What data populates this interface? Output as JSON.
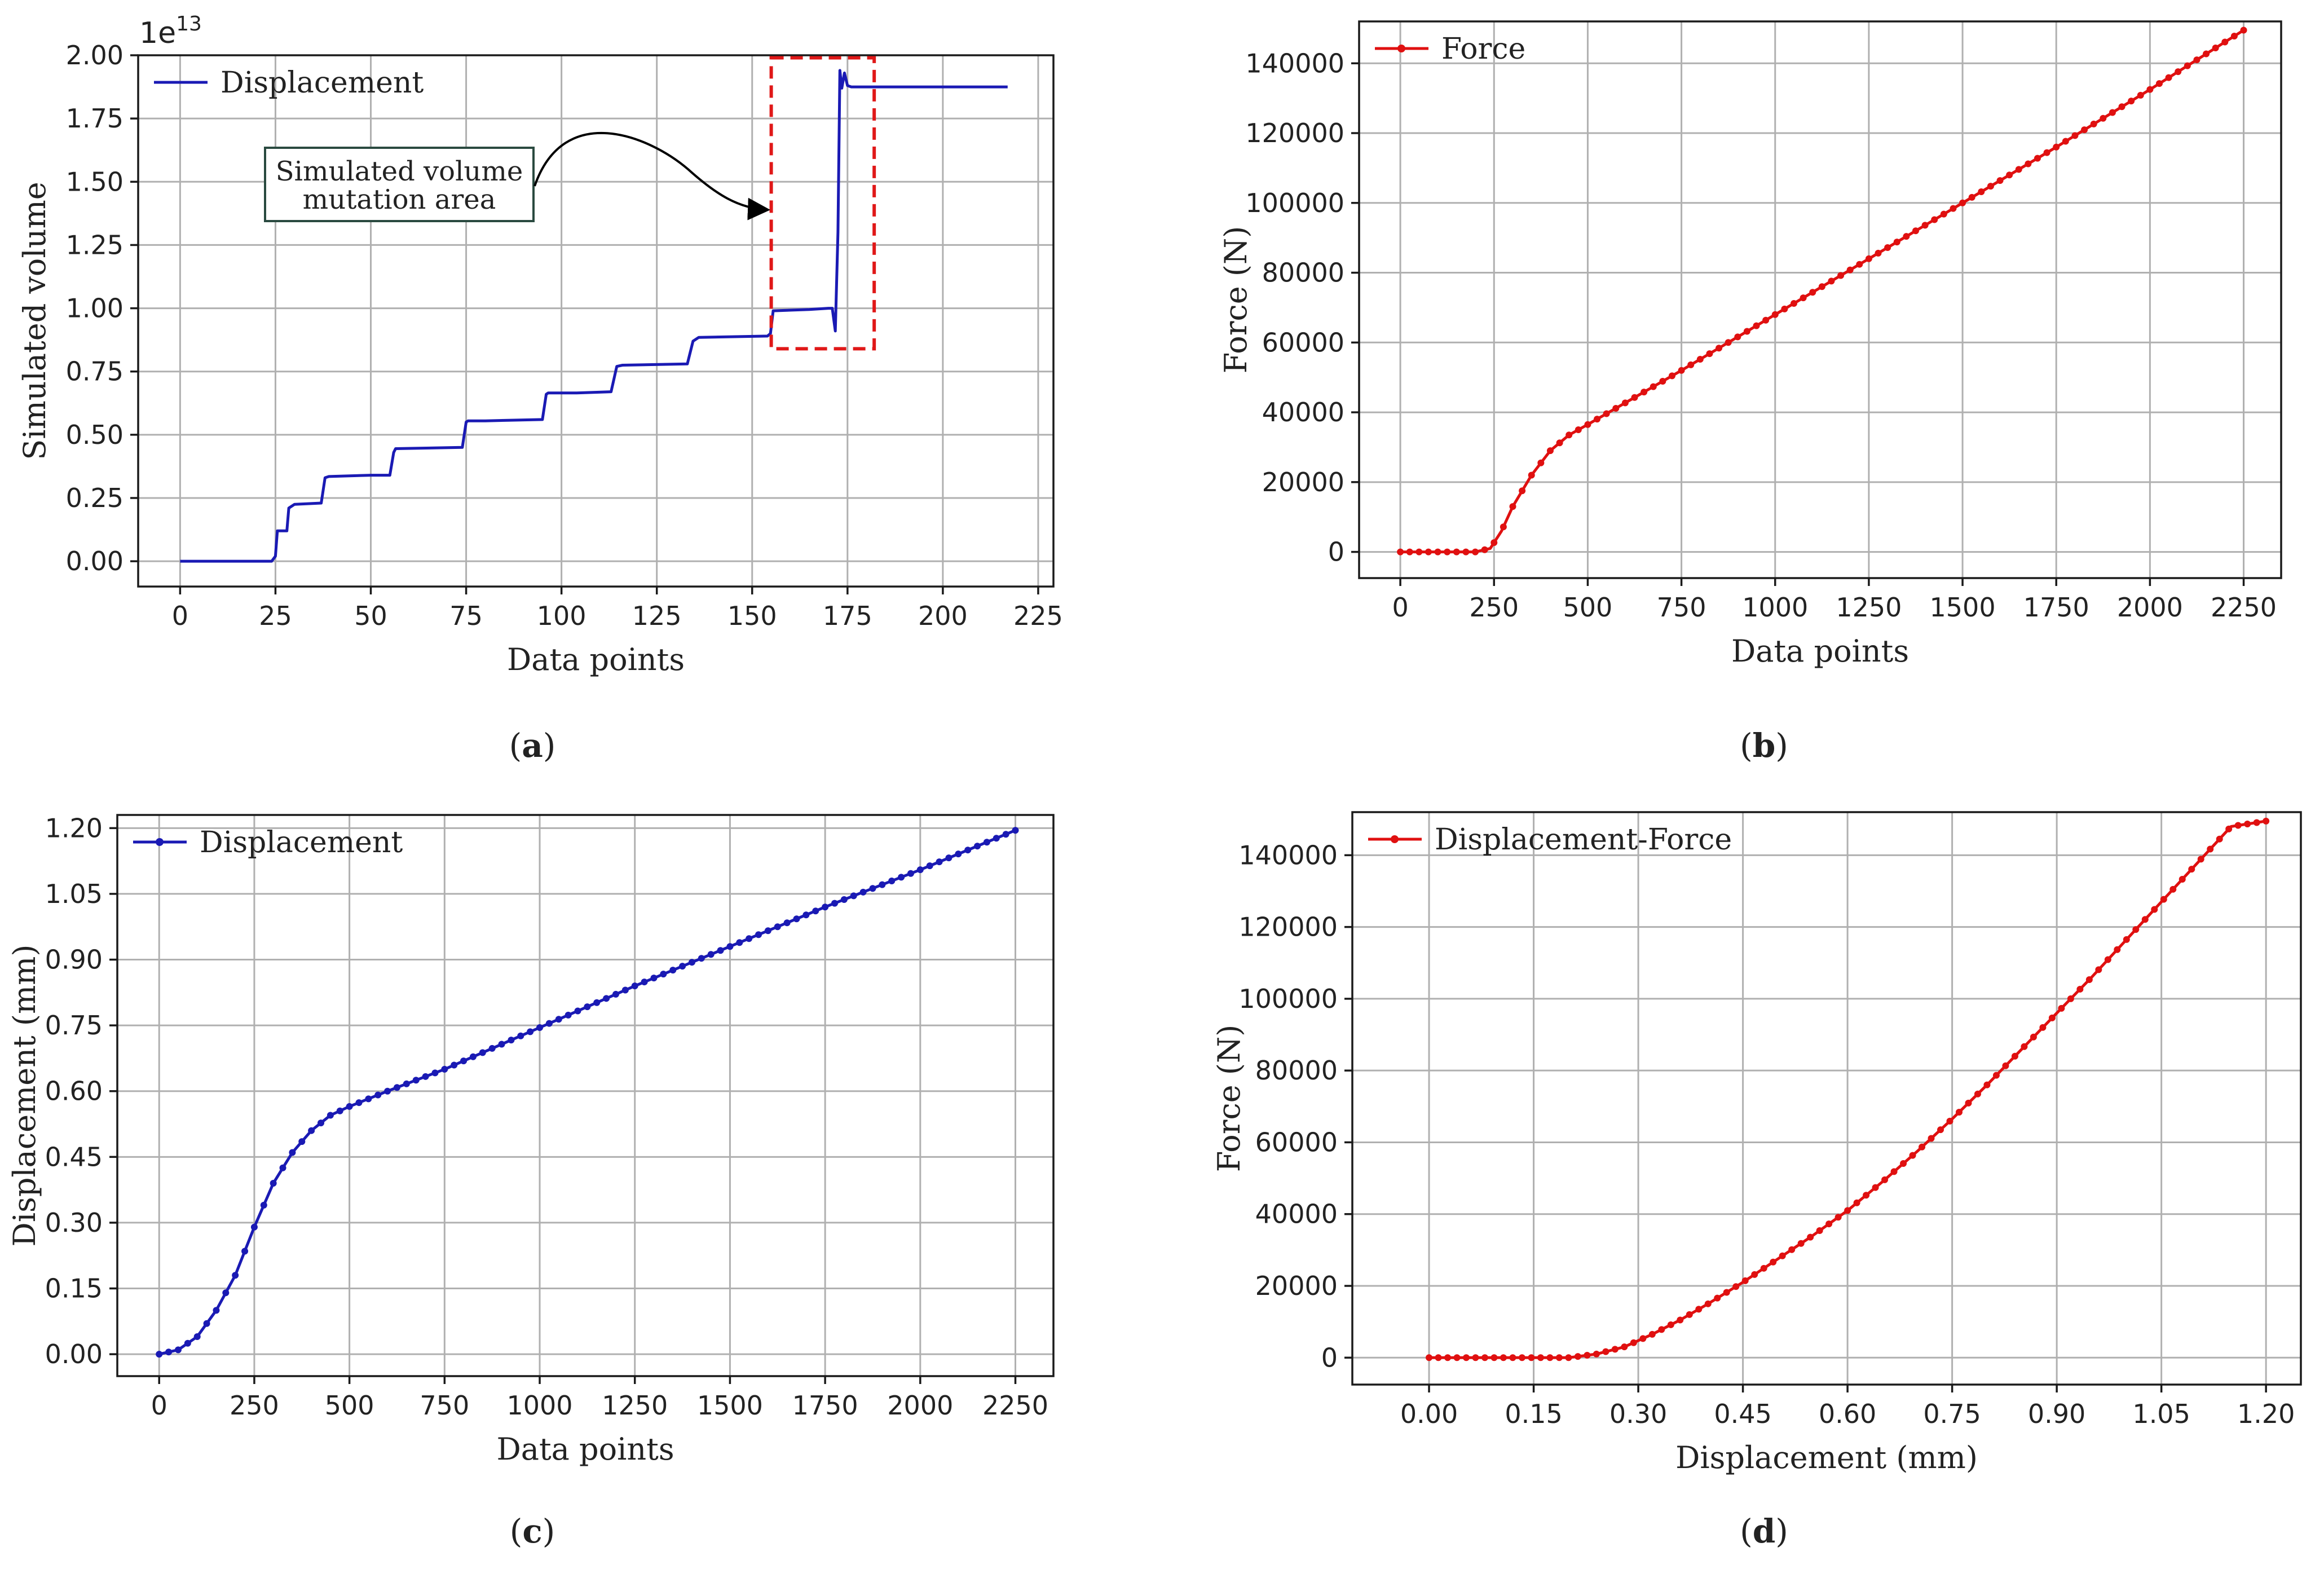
{
  "panels": {
    "a": "(a)",
    "b": "(b)",
    "c": "(c)",
    "d": "(d)"
  },
  "annotation": {
    "line1": "Simulated volume",
    "line2": "mutation area"
  },
  "chart_data": [
    {
      "id": "a",
      "type": "line",
      "title": "",
      "xlabel": "Data points",
      "ylabel": "Simulated volume",
      "exponent_base": "1e",
      "exponent_power": "13",
      "xlim": [
        -11,
        229
      ],
      "ylim": [
        -0.1,
        2.0
      ],
      "xticks": [
        0,
        25,
        50,
        75,
        100,
        125,
        150,
        175,
        200,
        225
      ],
      "yticks": [
        0.0,
        0.25,
        0.5,
        0.75,
        1.0,
        1.25,
        1.5,
        1.75,
        2.0
      ],
      "ytick_labels": [
        "0.00",
        "0.25",
        "0.50",
        "0.75",
        "1.00",
        "1.25",
        "1.50",
        "1.75",
        "2.00"
      ],
      "grid": true,
      "legend": "top-left",
      "color": "#1a1ab4",
      "markers": false,
      "series": [
        {
          "name": "Displacement",
          "x": [
            0,
            24,
            25,
            25.5,
            28,
            28.5,
            30,
            37,
            38,
            39,
            50,
            55,
            56,
            56.5,
            74,
            75,
            75.5,
            80,
            95,
            96,
            96.5,
            104,
            113,
            114.5,
            116,
            133,
            134.5,
            136,
            154,
            154.8,
            155.5,
            165,
            170,
            171,
            171.8,
            172.5,
            173,
            173.5,
            174.2,
            175,
            176,
            178,
            217
          ],
          "y": [
            0.0,
            0.0,
            0.02,
            0.12,
            0.12,
            0.21,
            0.225,
            0.23,
            0.33,
            0.335,
            0.34,
            0.34,
            0.43,
            0.445,
            0.45,
            0.55,
            0.555,
            0.555,
            0.56,
            0.66,
            0.665,
            0.665,
            0.67,
            0.77,
            0.775,
            0.78,
            0.87,
            0.885,
            0.89,
            0.9,
            0.99,
            0.995,
            1.0,
            1.0,
            0.91,
            1.3,
            1.94,
            1.87,
            1.93,
            1.88,
            1.875,
            1.875,
            1.875
          ]
        }
      ],
      "highlight_box": {
        "x": [
          155,
          182
        ],
        "y": [
          0.84,
          1.99
        ],
        "color": "#e01818"
      }
    },
    {
      "id": "b",
      "type": "line",
      "title": "",
      "xlabel": "Data points",
      "ylabel": "Force (N)",
      "xlim": [
        -110,
        2350
      ],
      "ylim": [
        -7500,
        152000
      ],
      "xticks": [
        0,
        250,
        500,
        750,
        1000,
        1250,
        1500,
        1750,
        2000,
        2250
      ],
      "yticks": [
        0,
        20000,
        40000,
        60000,
        80000,
        100000,
        120000,
        140000
      ],
      "grid": true,
      "legend": "top-left",
      "color": "#e01010",
      "markers": true,
      "series": [
        {
          "name": "Force",
          "x": [
            0,
            100,
            200,
            240,
            270,
            300,
            350,
            400,
            450,
            500,
            750,
            1000,
            1250,
            1500,
            1750,
            2000,
            2250
          ],
          "y": [
            0,
            0,
            0,
            1000,
            6000,
            13000,
            22000,
            29000,
            33500,
            36500,
            52000,
            68000,
            84000,
            100000,
            116000,
            132500,
            149500
          ]
        }
      ]
    },
    {
      "id": "c",
      "type": "line",
      "title": "",
      "xlabel": "Data points",
      "ylabel": "Displacement (mm)",
      "xlim": [
        -110,
        2350
      ],
      "ylim": [
        -0.05,
        1.23
      ],
      "xticks": [
        0,
        250,
        500,
        750,
        1000,
        1250,
        1500,
        1750,
        2000,
        2250
      ],
      "yticks": [
        0.0,
        0.15,
        0.3,
        0.45,
        0.6,
        0.75,
        0.9,
        1.05,
        1.2
      ],
      "ytick_labels": [
        "0.00",
        "0.15",
        "0.30",
        "0.45",
        "0.60",
        "0.75",
        "0.90",
        "1.05",
        "1.20"
      ],
      "grid": true,
      "legend": "top-left",
      "color": "#1a1ab4",
      "markers": true,
      "series": [
        {
          "name": "Displacement",
          "x": [
            0,
            50,
            100,
            150,
            200,
            250,
            300,
            350,
            400,
            450,
            500,
            600,
            750,
            1000,
            1250,
            1500,
            1750,
            2000,
            2250
          ],
          "y": [
            0.0,
            0.01,
            0.04,
            0.1,
            0.18,
            0.29,
            0.39,
            0.46,
            0.51,
            0.545,
            0.565,
            0.6,
            0.65,
            0.745,
            0.84,
            0.93,
            1.02,
            1.105,
            1.195
          ]
        }
      ]
    },
    {
      "id": "d",
      "type": "line",
      "title": "",
      "xlabel": "Displacement (mm)",
      "ylabel": "Force (N)",
      "xlim": [
        -0.11,
        1.25
      ],
      "ylim": [
        -7500,
        152000
      ],
      "xticks": [
        0.0,
        0.15,
        0.3,
        0.45,
        0.6,
        0.75,
        0.9,
        1.05,
        1.2
      ],
      "xtick_labels": [
        "0.00",
        "0.15",
        "0.30",
        "0.45",
        "0.60",
        "0.75",
        "0.90",
        "1.05",
        "1.20"
      ],
      "yticks": [
        0,
        20000,
        40000,
        60000,
        80000,
        100000,
        120000,
        140000
      ],
      "grid": true,
      "legend": "top-left",
      "color": "#e01010",
      "markers": true,
      "series": [
        {
          "name": "Displacement-Force",
          "x": [
            0.0,
            0.05,
            0.1,
            0.15,
            0.2,
            0.24,
            0.28,
            0.32,
            0.36,
            0.4,
            0.45,
            0.5,
            0.55,
            0.6,
            0.65,
            0.7,
            0.75,
            0.8,
            0.85,
            0.9,
            0.95,
            1.0,
            1.05,
            1.1,
            1.15,
            1.2
          ],
          "y": [
            0,
            0,
            0,
            0,
            0,
            1000,
            3000,
            6500,
            10500,
            15000,
            21000,
            27500,
            34000,
            41000,
            49000,
            57500,
            66500,
            76000,
            86000,
            96000,
            106000,
            116500,
            127000,
            137500,
            148000,
            149500
          ]
        }
      ]
    }
  ]
}
